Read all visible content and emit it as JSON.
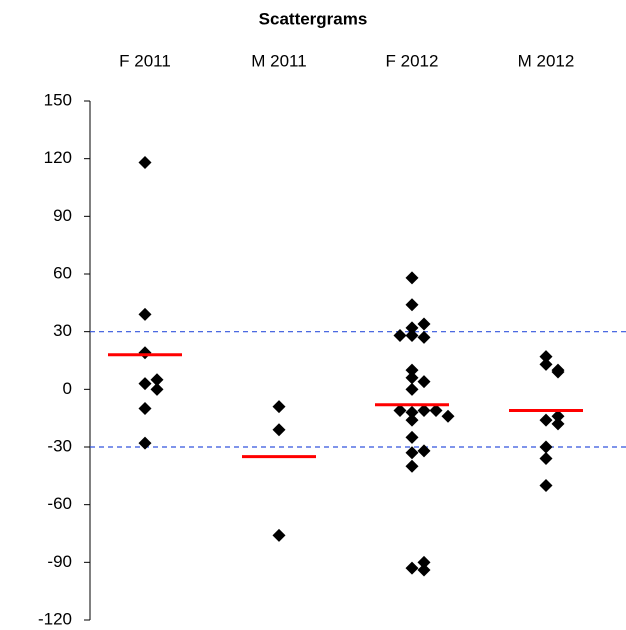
{
  "chart_data": {
    "type": "scatter",
    "title": "Scattergrams",
    "categories": [
      "F 2011",
      "M 2011",
      "F 2012",
      "M 2012"
    ],
    "values": [
      [
        118,
        39,
        19,
        3,
        0,
        5,
        -10,
        -28
      ],
      [
        -9,
        -21,
        -76
      ],
      [
        58,
        44,
        28,
        32,
        27,
        34,
        28,
        10,
        6,
        4,
        0,
        -12,
        -11,
        -11,
        -11,
        -16,
        -14,
        -25,
        -33,
        -32,
        -40,
        -93,
        -94,
        -90
      ],
      [
        17,
        13,
        10,
        9,
        -16,
        -14,
        -18,
        -30,
        -36,
        -50
      ]
    ],
    "means": [
      18,
      -35,
      -8,
      -11
    ],
    "color": "#000000",
    "mean_color": "#ff0000",
    "reference_lines": [
      30,
      -30
    ],
    "reference_color": "#3355dd",
    "ylim": [
      -120,
      150
    ],
    "yticks": [
      -120,
      -90,
      -60,
      -30,
      0,
      30,
      60,
      90,
      120,
      150
    ]
  }
}
